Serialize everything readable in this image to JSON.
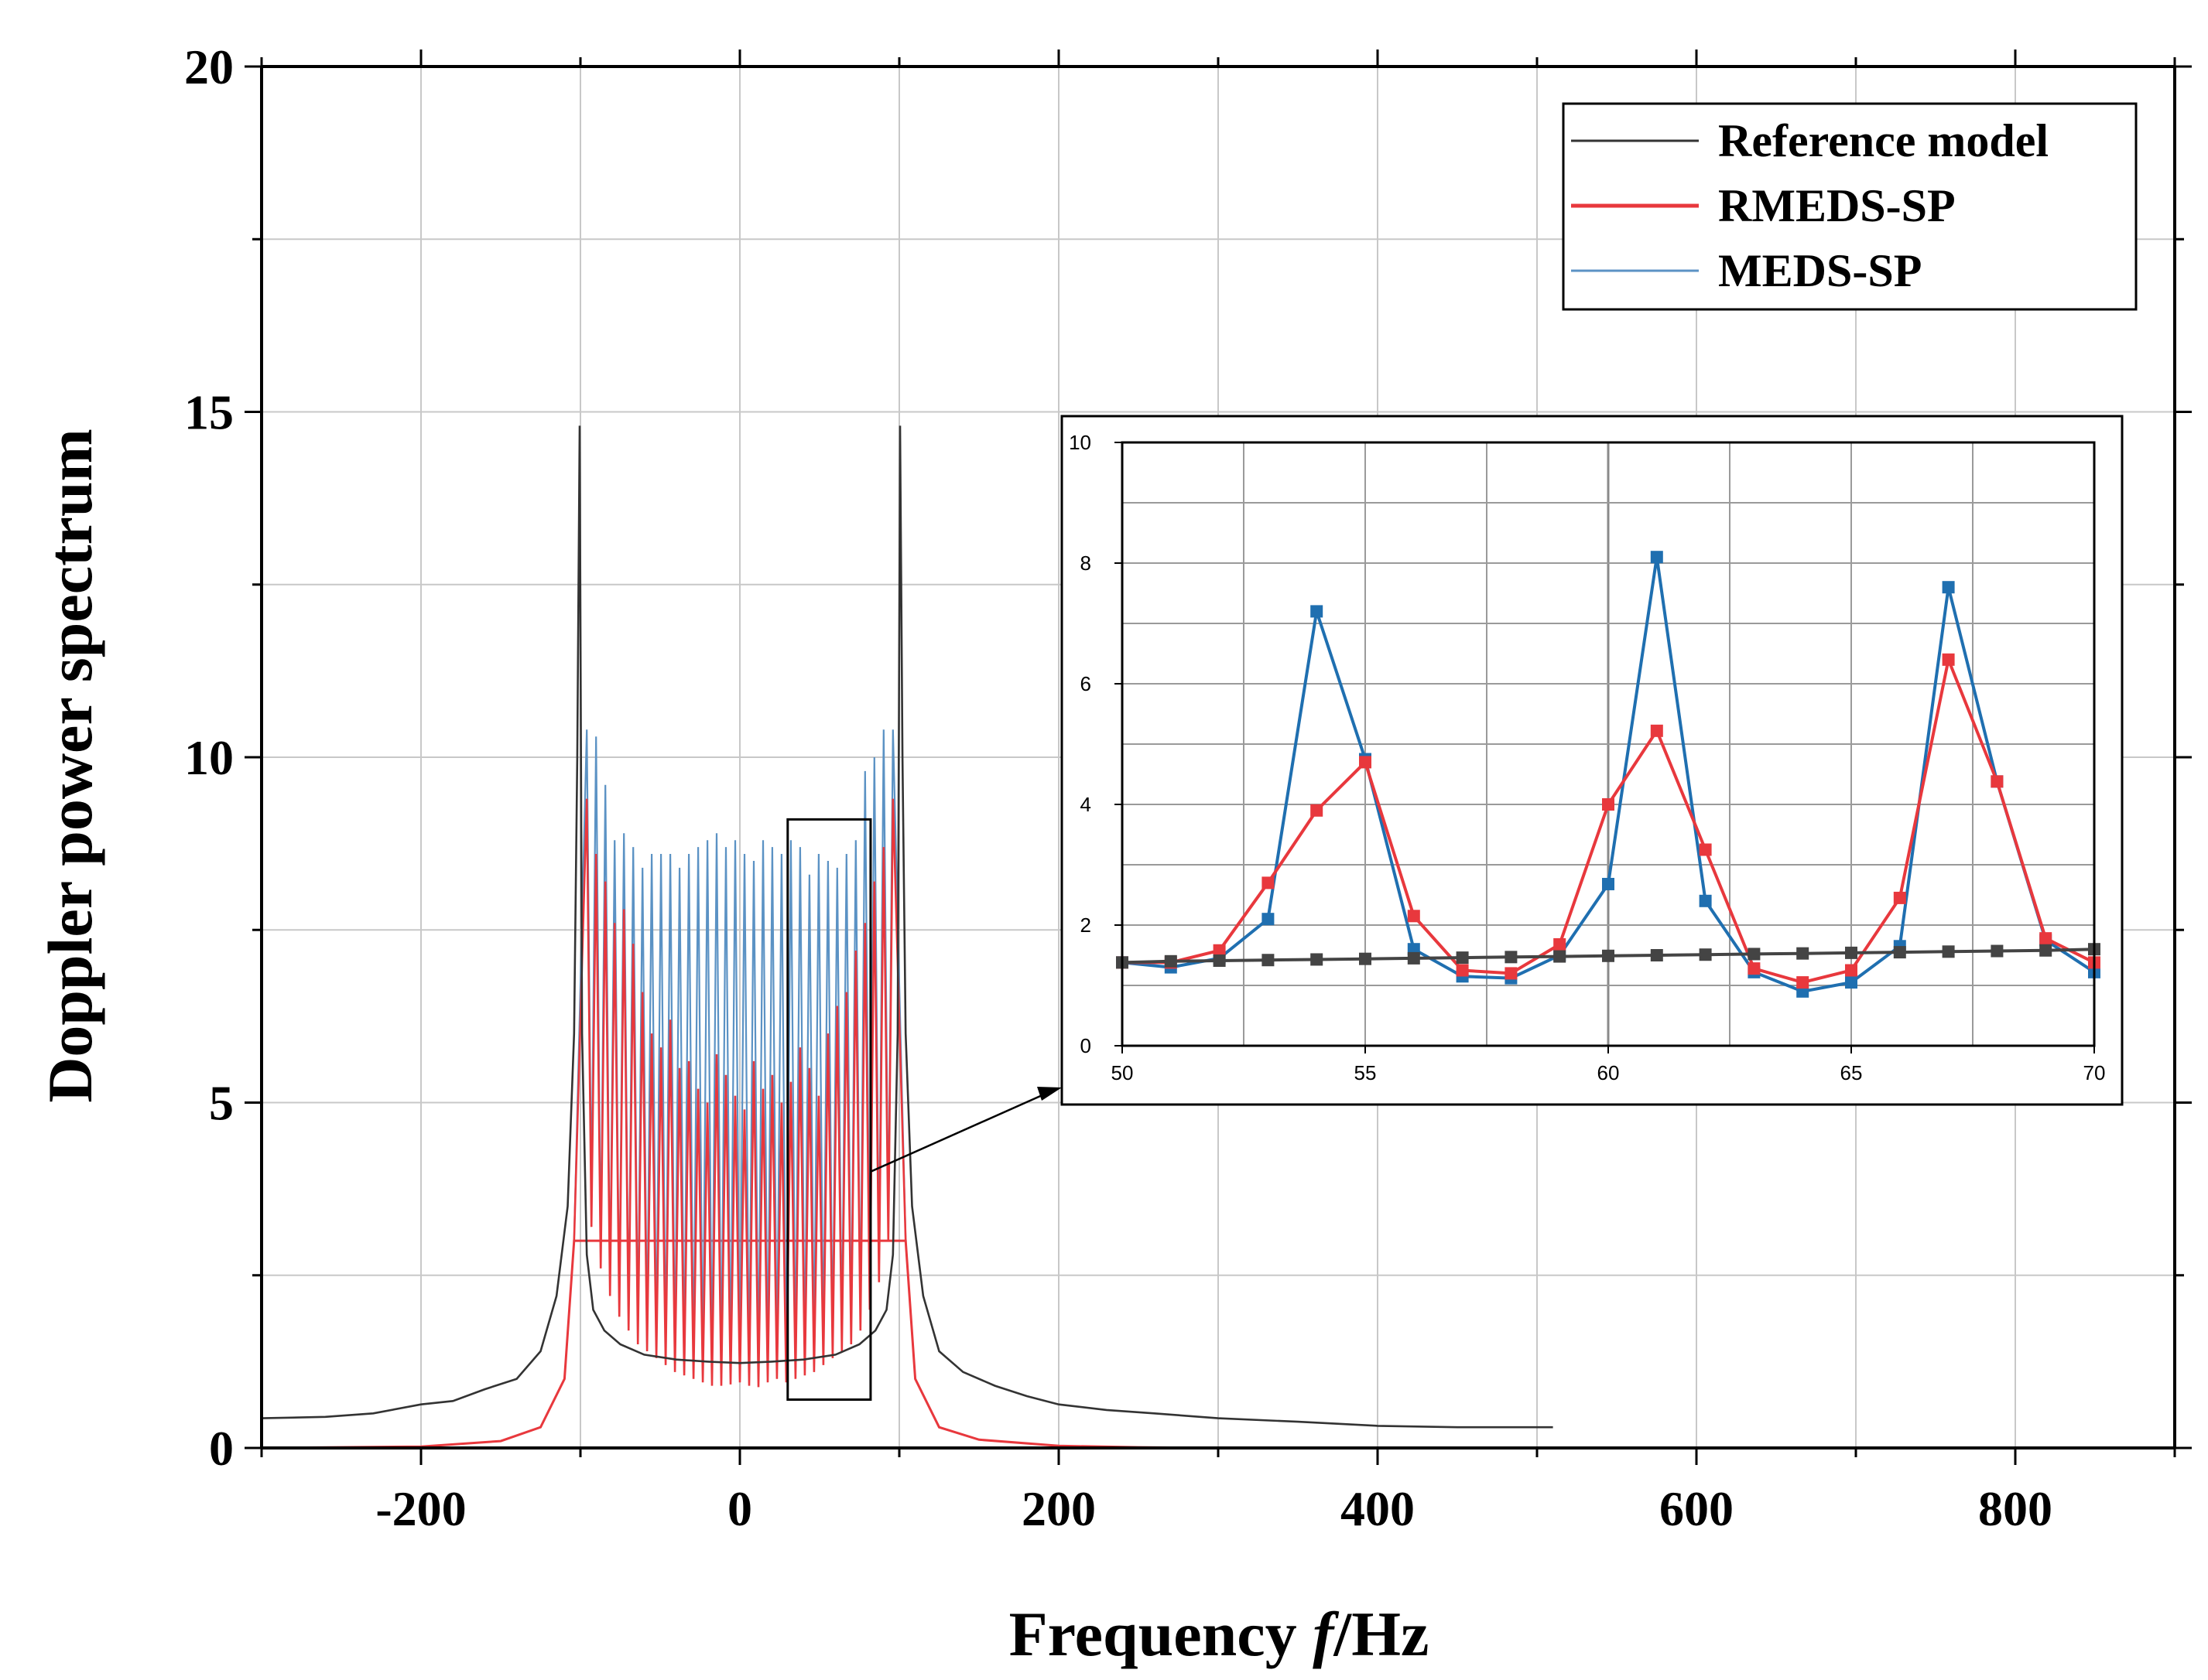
{
  "chart_data": [
    {
      "type": "line",
      "title": "",
      "xlabel_prefix": "Frequency ",
      "xlabel_var": "f",
      "xlabel_unit": "/Hz",
      "ylabel": "Doppler power spectrum",
      "xlim": [
        -300,
        900
      ],
      "ylim": [
        0,
        20
      ],
      "xticks": [
        -200,
        0,
        200,
        400,
        600,
        800
      ],
      "xtick_labels": [
        "-200",
        "0",
        "200",
        "400",
        "600",
        "800"
      ],
      "yticks": [
        0,
        5,
        10,
        15,
        20
      ],
      "ytick_labels": [
        "0",
        "5",
        "10",
        "15",
        "20"
      ],
      "grid": true,
      "legend_position": "top-right",
      "colors": {
        "reference": "#333333",
        "rmeds": "#e8383d",
        "meds": "#5b92c4"
      },
      "series": [
        {
          "name": "Reference model",
          "x": [
            -300,
            -260,
            -230,
            -200,
            -180,
            -160,
            -140,
            -125,
            -115,
            -108,
            -104,
            -102,
            -100.5,
            -99,
            -96,
            -92,
            -85,
            -75,
            -60,
            -40,
            -20,
            0,
            20,
            40,
            60,
            75,
            85,
            92,
            96,
            99,
            100.5,
            102,
            104,
            108,
            115,
            125,
            140,
            160,
            180,
            200,
            230,
            260,
            300,
            350,
            400,
            450,
            510
          ],
          "values": [
            0.43,
            0.45,
            0.5,
            0.63,
            0.68,
            0.85,
            1.0,
            1.4,
            2.2,
            3.5,
            6.0,
            10.0,
            14.8,
            6.0,
            2.8,
            2.0,
            1.7,
            1.5,
            1.35,
            1.28,
            1.25,
            1.23,
            1.25,
            1.28,
            1.35,
            1.5,
            1.7,
            2.0,
            2.8,
            6.0,
            14.8,
            10.0,
            6.0,
            3.5,
            2.2,
            1.4,
            1.1,
            0.9,
            0.75,
            0.63,
            0.55,
            0.5,
            0.43,
            0.38,
            0.32,
            0.3,
            0.3
          ]
        },
        {
          "name": "RMEDS-SP",
          "peaks": [
            9.4,
            8.6,
            8.2,
            7.6,
            7.8,
            7.3,
            6.6,
            6.0,
            5.8,
            6.2,
            5.5,
            5.6,
            5.2,
            5.0,
            5.7,
            5.4,
            5.1,
            4.9,
            5.6,
            5.2,
            5.4,
            5.0,
            5.3,
            5.8,
            5.5,
            5.1,
            6.0,
            6.4,
            6.6,
            7.2,
            7.6,
            8.2,
            8.7,
            9.4
          ],
          "troughs": [
            3.2,
            2.6,
            2.2,
            1.9,
            1.7,
            1.5,
            1.4,
            1.3,
            1.2,
            1.1,
            1.05,
            1.0,
            0.95,
            0.9,
            0.9,
            0.92,
            0.95,
            0.9,
            0.88,
            0.95,
            1.0,
            0.95,
            1.0,
            1.05,
            1.1,
            1.2,
            1.3,
            1.4,
            1.5,
            1.7,
            2.0,
            2.4,
            3.0
          ],
          "tail_x": [
            -300,
            -200,
            -150,
            -125,
            -110,
            -104,
            104,
            110,
            125,
            150,
            200,
            250,
            300,
            510
          ],
          "tail_values": [
            0.0,
            0.02,
            0.1,
            0.3,
            1.0,
            3.0,
            3.0,
            1.0,
            0.3,
            0.12,
            0.03,
            0.01,
            0.0,
            0.0
          ]
        },
        {
          "name": "MEDS-SP",
          "peaks": [
            10.4,
            10.3,
            9.6,
            8.8,
            8.9,
            8.7,
            8.4,
            8.6,
            8.6,
            8.6,
            8.4,
            8.6,
            8.7,
            8.8,
            8.9,
            8.7,
            8.8,
            8.6,
            8.5,
            8.8,
            8.7,
            8.6,
            8.8,
            8.7,
            8.3,
            8.6,
            8.5,
            8.4,
            8.6,
            8.8,
            9.8,
            10.0,
            10.4,
            10.4
          ],
          "troughs": [
            3.6,
            2.8,
            2.3,
            2.0,
            1.8,
            1.6,
            1.5,
            1.4,
            1.3,
            1.2,
            1.1,
            1.05,
            1.0,
            1.0,
            1.0,
            1.0,
            1.0,
            1.0,
            1.0,
            1.05,
            1.1,
            1.1,
            1.15,
            1.2,
            1.3,
            1.35,
            1.4,
            1.5,
            1.6,
            1.8,
            2.1,
            2.6,
            3.2
          ]
        }
      ],
      "zoom_box": {
        "xlim": [
          30,
          82
        ],
        "ylim": [
          0.7,
          9.1
        ]
      }
    },
    {
      "type": "line",
      "title": "",
      "position": "inset",
      "xlim": [
        50,
        70
      ],
      "ylim": [
        0,
        10
      ],
      "xticks": [
        50,
        55,
        60,
        65,
        70
      ],
      "xtick_labels": [
        "50",
        "55",
        "60",
        "65",
        "70"
      ],
      "yticks": [
        0,
        2,
        4,
        6,
        8,
        10
      ],
      "ytick_labels": [
        "0",
        "2",
        "4",
        "6",
        "8",
        "10"
      ],
      "grid": true,
      "x": [
        50,
        51,
        52,
        53,
        54,
        55,
        56,
        57,
        58,
        59,
        60,
        61,
        62,
        63,
        64,
        65,
        66,
        67,
        68,
        69,
        70
      ],
      "series": [
        {
          "name": "Reference model",
          "color": "#444444",
          "values": [
            1.38,
            1.4,
            1.41,
            1.42,
            1.43,
            1.44,
            1.45,
            1.46,
            1.47,
            1.48,
            1.49,
            1.5,
            1.51,
            1.52,
            1.53,
            1.54,
            1.55,
            1.56,
            1.57,
            1.58,
            1.6
          ]
        },
        {
          "name": "RMEDS-SP",
          "color": "#e8383d",
          "values": [
            1.38,
            1.38,
            1.58,
            2.7,
            3.9,
            4.7,
            2.15,
            1.25,
            1.2,
            1.68,
            4.0,
            5.22,
            3.25,
            1.28,
            1.05,
            1.25,
            2.45,
            6.4,
            4.38,
            1.78,
            1.38
          ]
        },
        {
          "name": "MEDS-SP",
          "color": "#1f6fb0",
          "values": [
            1.38,
            1.3,
            1.45,
            2.1,
            7.2,
            4.75,
            1.6,
            1.15,
            1.12,
            1.5,
            2.68,
            8.1,
            2.4,
            1.22,
            0.9,
            1.05,
            1.65,
            7.6,
            4.38,
            1.75,
            1.22
          ]
        }
      ]
    }
  ]
}
